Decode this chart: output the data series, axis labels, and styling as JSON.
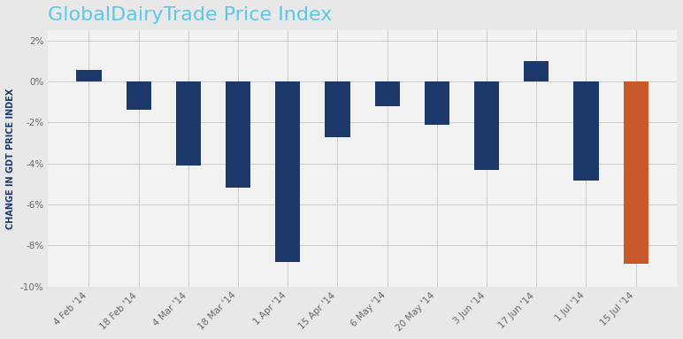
{
  "title": "GlobalDairyTrade Price Index",
  "title_color": "#5BC8E8",
  "ylabel": "CHANGE IN GDT PRICE INDEX",
  "ylabel_color": "#1B3A6B",
  "categories": [
    "4 Feb '14",
    "18 Feb '14",
    "4 Mar '14",
    "18 Mar '14",
    "1 Apr '14",
    "15 Apr '14",
    "6 May '14",
    "20 May '14",
    "3 Jun '14",
    "17 Jun '14",
    "1 Jul '14",
    "15 Jul '14"
  ],
  "values": [
    0.55,
    -1.4,
    -4.1,
    -5.2,
    -8.8,
    -2.7,
    -1.2,
    -2.1,
    -4.3,
    1.0,
    -4.85,
    -8.9
  ],
  "bar_colors": [
    "#1B3A6B",
    "#1B3A6B",
    "#1B3A6B",
    "#1B3A6B",
    "#1B3A6B",
    "#1B3A6B",
    "#1B3A6B",
    "#1B3A6B",
    "#1B3A6B",
    "#1B3A6B",
    "#1B3A6B",
    "#C85A2A"
  ],
  "ylim": [
    -10,
    2.5
  ],
  "yticks": [
    -10,
    -8,
    -6,
    -4,
    -2,
    0,
    2
  ],
  "ytick_labels": [
    "-10%",
    "-8%",
    "-6%",
    "-4%",
    "-2%",
    "0%",
    "2%"
  ],
  "background_color": "#E8E8E8",
  "plot_bg_color": "#F2F2F2",
  "grid_color": "#CCCCCC",
  "title_fontsize": 16,
  "ylabel_fontsize": 7,
  "tick_fontsize": 7.5,
  "bar_width": 0.5
}
